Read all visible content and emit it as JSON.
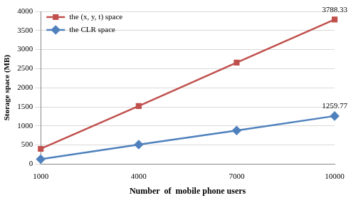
{
  "chart_data": {
    "type": "line",
    "x_label": "Number  of  mobile phone users",
    "y_label": "Storage space (MB)",
    "categories": [
      "1000",
      "4000",
      "7000",
      "10000"
    ],
    "series": [
      {
        "name": "the (x, y, t) space",
        "color": "#c0504d",
        "marker": "square",
        "line_style": "solid",
        "values": [
          400,
          1520,
          2660,
          3788.33
        ],
        "value_labels": [
          null,
          null,
          null,
          "3788.33"
        ]
      },
      {
        "name": "the CLR space",
        "color": "#4f81bd",
        "marker": "diamond",
        "line_style": "solid",
        "values": [
          130,
          510,
          880,
          1259.77
        ],
        "value_labels": [
          null,
          null,
          null,
          "1259.77"
        ]
      }
    ],
    "ylim": [
      0,
      4000
    ],
    "yticks": [
      0,
      500,
      1000,
      1500,
      2000,
      2500,
      3000,
      3500,
      4000
    ],
    "grid": true,
    "legend": "upper left"
  }
}
